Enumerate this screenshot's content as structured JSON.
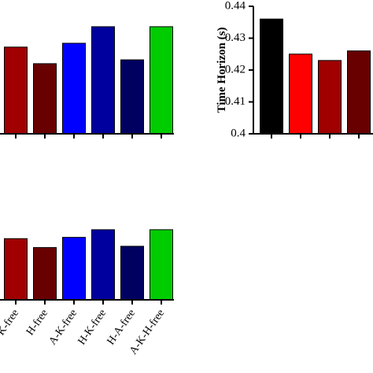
{
  "chart_data": [
    {
      "type": "bar",
      "categories": [
        null,
        null,
        null,
        null,
        null,
        null
      ],
      "values": [
        0.68,
        0.55,
        0.71,
        0.84,
        0.58,
        0.84
      ],
      "colors": [
        "#a00000",
        "#680000",
        "#0000ff",
        "#00009e",
        "#000060",
        "#00cc00"
      ],
      "ylim": [
        0,
        1
      ]
    },
    {
      "type": "bar",
      "y_label": "Time Horizon (s)",
      "categories": [
        null,
        null,
        null,
        null
      ],
      "values": [
        0.436,
        0.425,
        0.423,
        0.426
      ],
      "colors": [
        "#000000",
        "#ff0000",
        "#a00000",
        "#680000"
      ],
      "ylim": [
        0.4,
        0.44
      ],
      "yticks": [
        0.4,
        0.41,
        0.42,
        0.43,
        0.44
      ]
    },
    {
      "type": "bar",
      "categories": [
        "K-free",
        "H-free",
        "A-K-free",
        "H-K-free",
        "H-A-free",
        "A-K-H-free"
      ],
      "values": [
        0.48,
        0.41,
        0.49,
        0.55,
        0.42,
        0.55
      ],
      "colors": [
        "#a00000",
        "#680000",
        "#0000ff",
        "#00009e",
        "#000060",
        "#00cc00"
      ],
      "ylim": [
        0,
        1
      ]
    }
  ]
}
